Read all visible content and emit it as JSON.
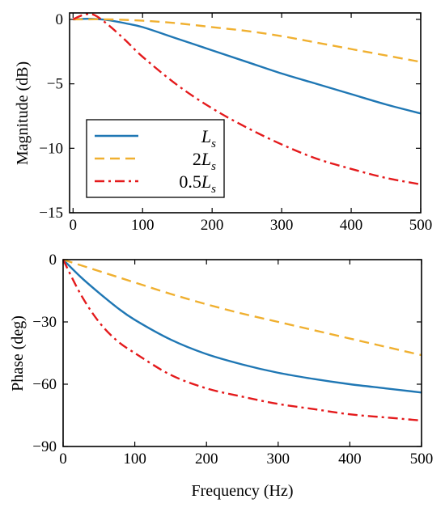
{
  "chart_data": [
    {
      "type": "line",
      "name": "magnitude",
      "ylabel": "Magnitude (dB)",
      "xlabel": "",
      "xlim": [
        -5,
        500
      ],
      "ylim": [
        -15,
        0.5
      ],
      "xticks": [
        0,
        100,
        200,
        300,
        400,
        500
      ],
      "yticks": [
        0,
        -5,
        -10,
        -15
      ],
      "xtick_labels": [
        "0",
        "100",
        "200",
        "300",
        "400",
        "500"
      ],
      "ytick_labels": [
        "0",
        "−5",
        "−10",
        "−15"
      ],
      "legend": {
        "placement": "center-left",
        "entries": [
          {
            "ref": "Ls",
            "prefix": "",
            "sym": "L",
            "sub": "s"
          },
          {
            "ref": "2Ls",
            "prefix": "2",
            "sym": "L",
            "sub": "s"
          },
          {
            "ref": "0.5Ls",
            "prefix": "0.5",
            "sym": "L",
            "sub": "s"
          }
        ]
      },
      "series": [
        {
          "id": "Ls",
          "color": "#1f77b4",
          "dash": "solid",
          "x": [
            0,
            25,
            50,
            75,
            100,
            150,
            200,
            250,
            300,
            350,
            400,
            450,
            500
          ],
          "y": [
            0,
            0.05,
            -0.05,
            -0.3,
            -0.6,
            -1.5,
            -2.4,
            -3.3,
            -4.2,
            -5.0,
            -5.8,
            -6.6,
            -7.3
          ]
        },
        {
          "id": "2Ls",
          "color": "#f0b030",
          "dash": "dashed",
          "x": [
            0,
            50,
            100,
            150,
            200,
            250,
            300,
            350,
            400,
            450,
            500
          ],
          "y": [
            0,
            0,
            -0.1,
            -0.3,
            -0.6,
            -0.9,
            -1.3,
            -1.8,
            -2.3,
            -2.8,
            -3.3
          ]
        },
        {
          "id": "0.5Ls",
          "color": "#e41a1c",
          "dash": "dashdot",
          "x": [
            0,
            15,
            30,
            50,
            75,
            100,
            150,
            200,
            250,
            300,
            350,
            400,
            450,
            500
          ],
          "y": [
            0,
            0.35,
            0.35,
            -0.4,
            -1.6,
            -2.9,
            -5.1,
            -6.9,
            -8.4,
            -9.7,
            -10.8,
            -11.6,
            -12.3,
            -12.8
          ]
        }
      ]
    },
    {
      "type": "line",
      "name": "phase",
      "ylabel": "Phase (deg)",
      "xlabel": "Frequency  (Hz)",
      "xlim": [
        0,
        500
      ],
      "ylim": [
        -90,
        0
      ],
      "xticks": [
        0,
        100,
        200,
        300,
        400,
        500
      ],
      "yticks": [
        0,
        -30,
        -60,
        -90
      ],
      "xtick_labels": [
        "0",
        "100",
        "200",
        "300",
        "400",
        "500"
      ],
      "ytick_labels": [
        "0",
        "−30",
        "−60",
        "−90"
      ],
      "series": [
        {
          "id": "Ls",
          "color": "#1f77b4",
          "dash": "solid",
          "x": [
            0,
            25,
            50,
            75,
            100,
            150,
            200,
            250,
            300,
            350,
            400,
            450,
            500
          ],
          "y": [
            0,
            -8.5,
            -16,
            -23,
            -29,
            -38.5,
            -45.5,
            -50.5,
            -54.5,
            -57.5,
            -60,
            -62,
            -64
          ]
        },
        {
          "id": "2Ls",
          "color": "#f0b030",
          "dash": "dashed",
          "x": [
            0,
            50,
            100,
            150,
            200,
            250,
            300,
            350,
            400,
            450,
            500
          ],
          "y": [
            0,
            -5.5,
            -11,
            -16.5,
            -21.5,
            -26,
            -30,
            -34,
            -38,
            -42,
            -46
          ]
        },
        {
          "id": "0.5Ls",
          "color": "#e41a1c",
          "dash": "dashdot",
          "x": [
            0,
            25,
            50,
            75,
            100,
            150,
            200,
            250,
            300,
            350,
            400,
            450,
            500
          ],
          "y": [
            0,
            -17,
            -30,
            -39,
            -45,
            -55.5,
            -62,
            -66,
            -69.5,
            -72,
            -74.5,
            -76,
            -77.5
          ]
        }
      ]
    }
  ]
}
